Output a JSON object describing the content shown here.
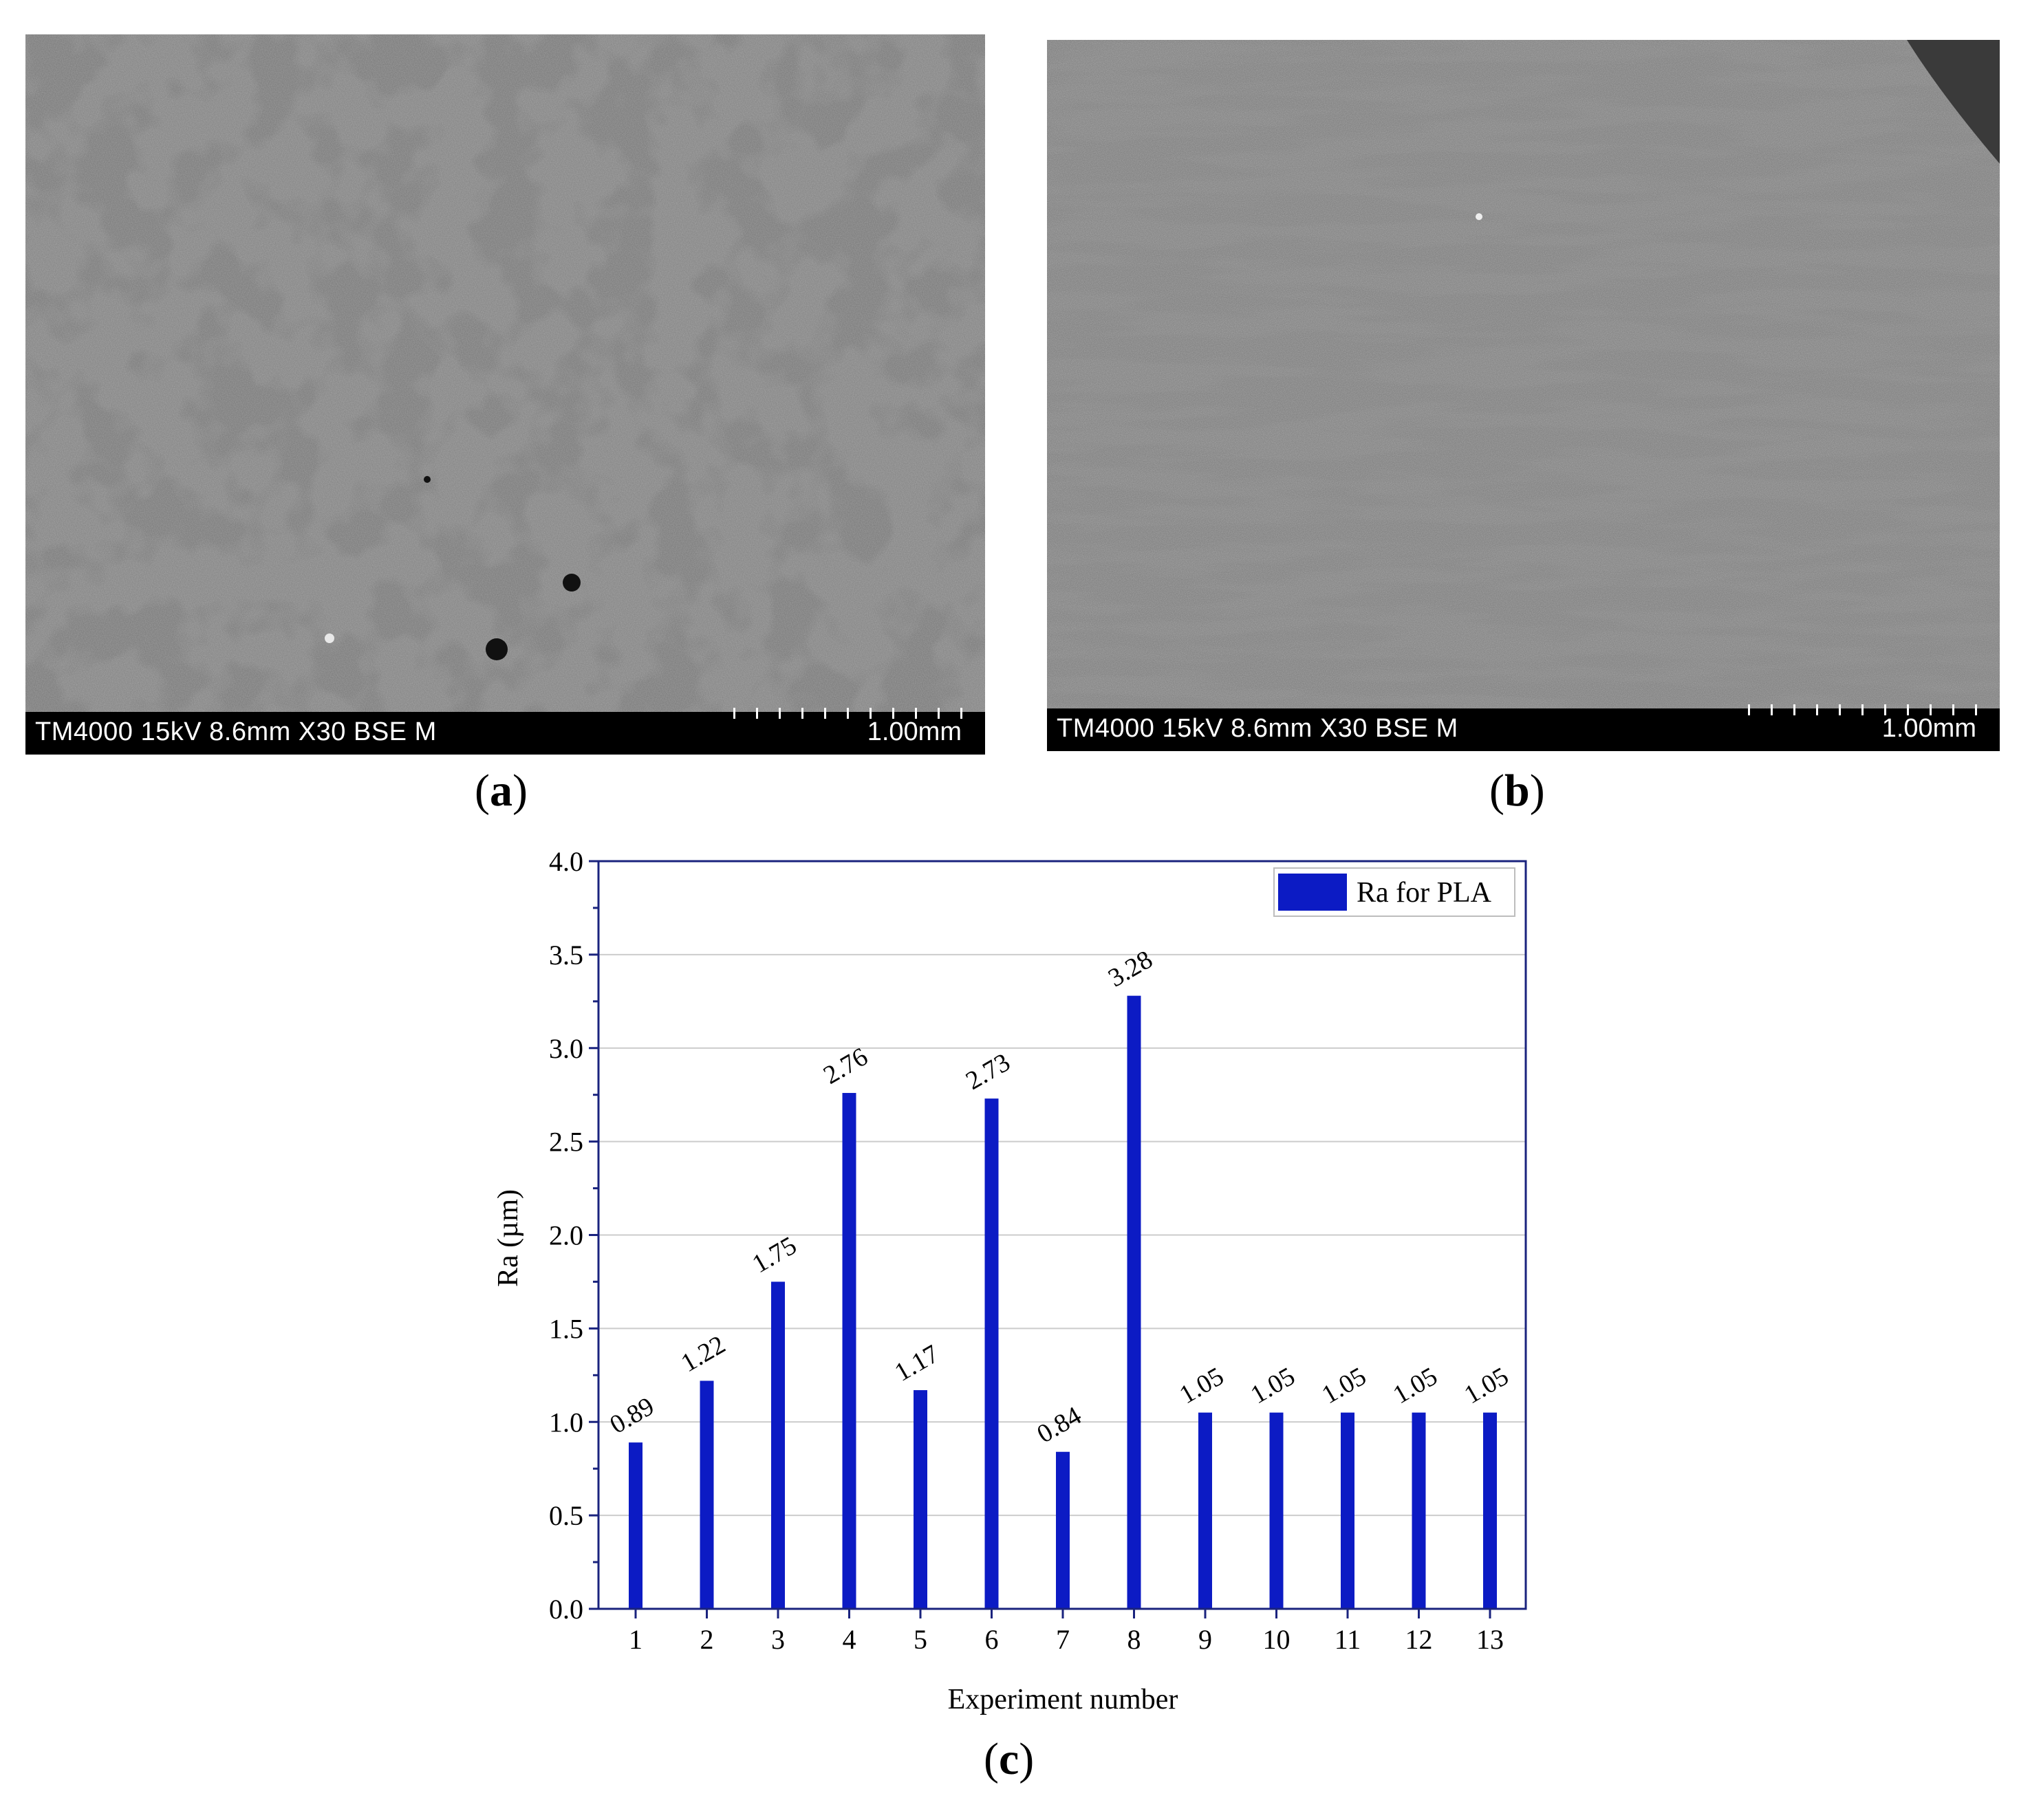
{
  "panels": {
    "a": {
      "label": "a",
      "info": "TM4000 15kV 8.6mm X30 BSE M",
      "scale": "1.00mm"
    },
    "b": {
      "label": "b",
      "info": "TM4000 15kV 8.6mm X30 BSE M",
      "scale": "1.00mm"
    },
    "c": {
      "label": "c"
    }
  },
  "colors": {
    "bar": "#0c1bc4",
    "axis": "#1a237e",
    "grid": "#cccccc"
  },
  "chart_data": {
    "type": "bar",
    "title": "",
    "xlabel": "Experiment number",
    "ylabel": "Ra (µm)",
    "categories": [
      "1",
      "2",
      "3",
      "4",
      "5",
      "6",
      "7",
      "8",
      "9",
      "10",
      "11",
      "12",
      "13"
    ],
    "series": [
      {
        "name": "Ra for PLA",
        "values": [
          0.89,
          1.22,
          1.75,
          2.76,
          1.17,
          2.73,
          0.84,
          3.28,
          1.05,
          1.05,
          1.05,
          1.05,
          1.05
        ],
        "labels": [
          "0.89",
          "1.22",
          "1.75",
          "2.76",
          "1.17",
          "2.73",
          "0.84",
          "3.28",
          "1.05",
          "1.05",
          "1.05",
          "1.05",
          "1.05"
        ]
      }
    ],
    "ylim": [
      0,
      4.0
    ],
    "yticks": [
      "0.0",
      "0.5",
      "1.0",
      "1.5",
      "2.0",
      "2.5",
      "3.0",
      "3.5",
      "4.0"
    ],
    "grid": true,
    "legend_position": "top-right"
  }
}
